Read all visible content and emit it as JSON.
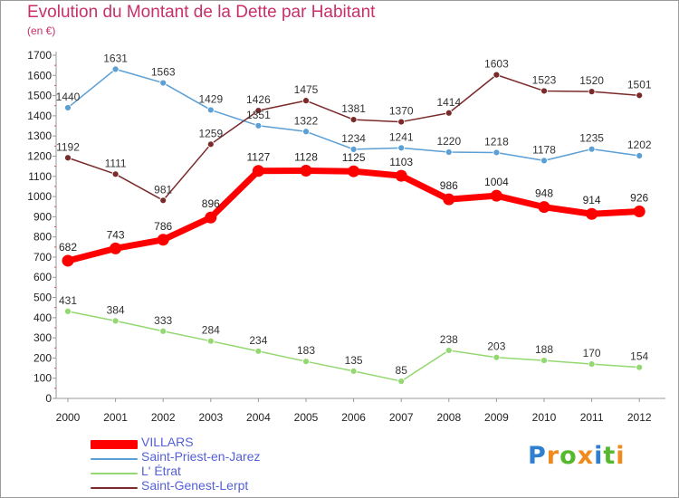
{
  "title": "Evolution du Montant de la Dette par Habitant",
  "unit_label": "(en €)",
  "logo": {
    "letters": [
      "P",
      "r",
      "o",
      "x",
      "i",
      "t",
      "i"
    ],
    "colors": [
      "#2f7fd0",
      "#f08a1c",
      "#56b82d",
      "#f08a1c",
      "#2f7fd0",
      "#56b82d",
      "#f08a1c"
    ]
  },
  "chart_data": {
    "type": "line",
    "title": "Evolution du Montant de la Dette par Habitant",
    "ylabel": "(en €)",
    "xlabel": "",
    "x": [
      "2000",
      "2001",
      "2002",
      "2003",
      "2004",
      "2005",
      "2006",
      "2007",
      "2008",
      "2009",
      "2010",
      "2011",
      "2012"
    ],
    "ylim": [
      0,
      1700
    ],
    "yticks": [
      0,
      100,
      200,
      300,
      400,
      500,
      600,
      700,
      800,
      900,
      1000,
      1100,
      1200,
      1300,
      1400,
      1500,
      1600,
      1700
    ],
    "grid": false,
    "legend_position": "bottom-left",
    "series": [
      {
        "name": "VILLARS",
        "color": "#ff0000",
        "values": [
          682,
          743,
          786,
          896,
          1127,
          1128,
          1125,
          1103,
          986,
          1004,
          948,
          914,
          926
        ]
      },
      {
        "name": "Saint-Priest-en-Jarez",
        "color": "#5a9fd6",
        "values": [
          1440,
          1631,
          1563,
          1429,
          1351,
          1322,
          1234,
          1241,
          1220,
          1218,
          1178,
          1235,
          1202
        ]
      },
      {
        "name": "L' Étrat",
        "color": "#93d870",
        "values": [
          431,
          384,
          333,
          284,
          234,
          183,
          135,
          85,
          238,
          203,
          188,
          170,
          154
        ]
      },
      {
        "name": "Saint-Genest-Lerpt",
        "color": "#7b2a2a",
        "values": [
          1192,
          1111,
          981,
          1259,
          1426,
          1475,
          1381,
          1370,
          1414,
          1603,
          1523,
          1520,
          1501
        ]
      }
    ]
  }
}
